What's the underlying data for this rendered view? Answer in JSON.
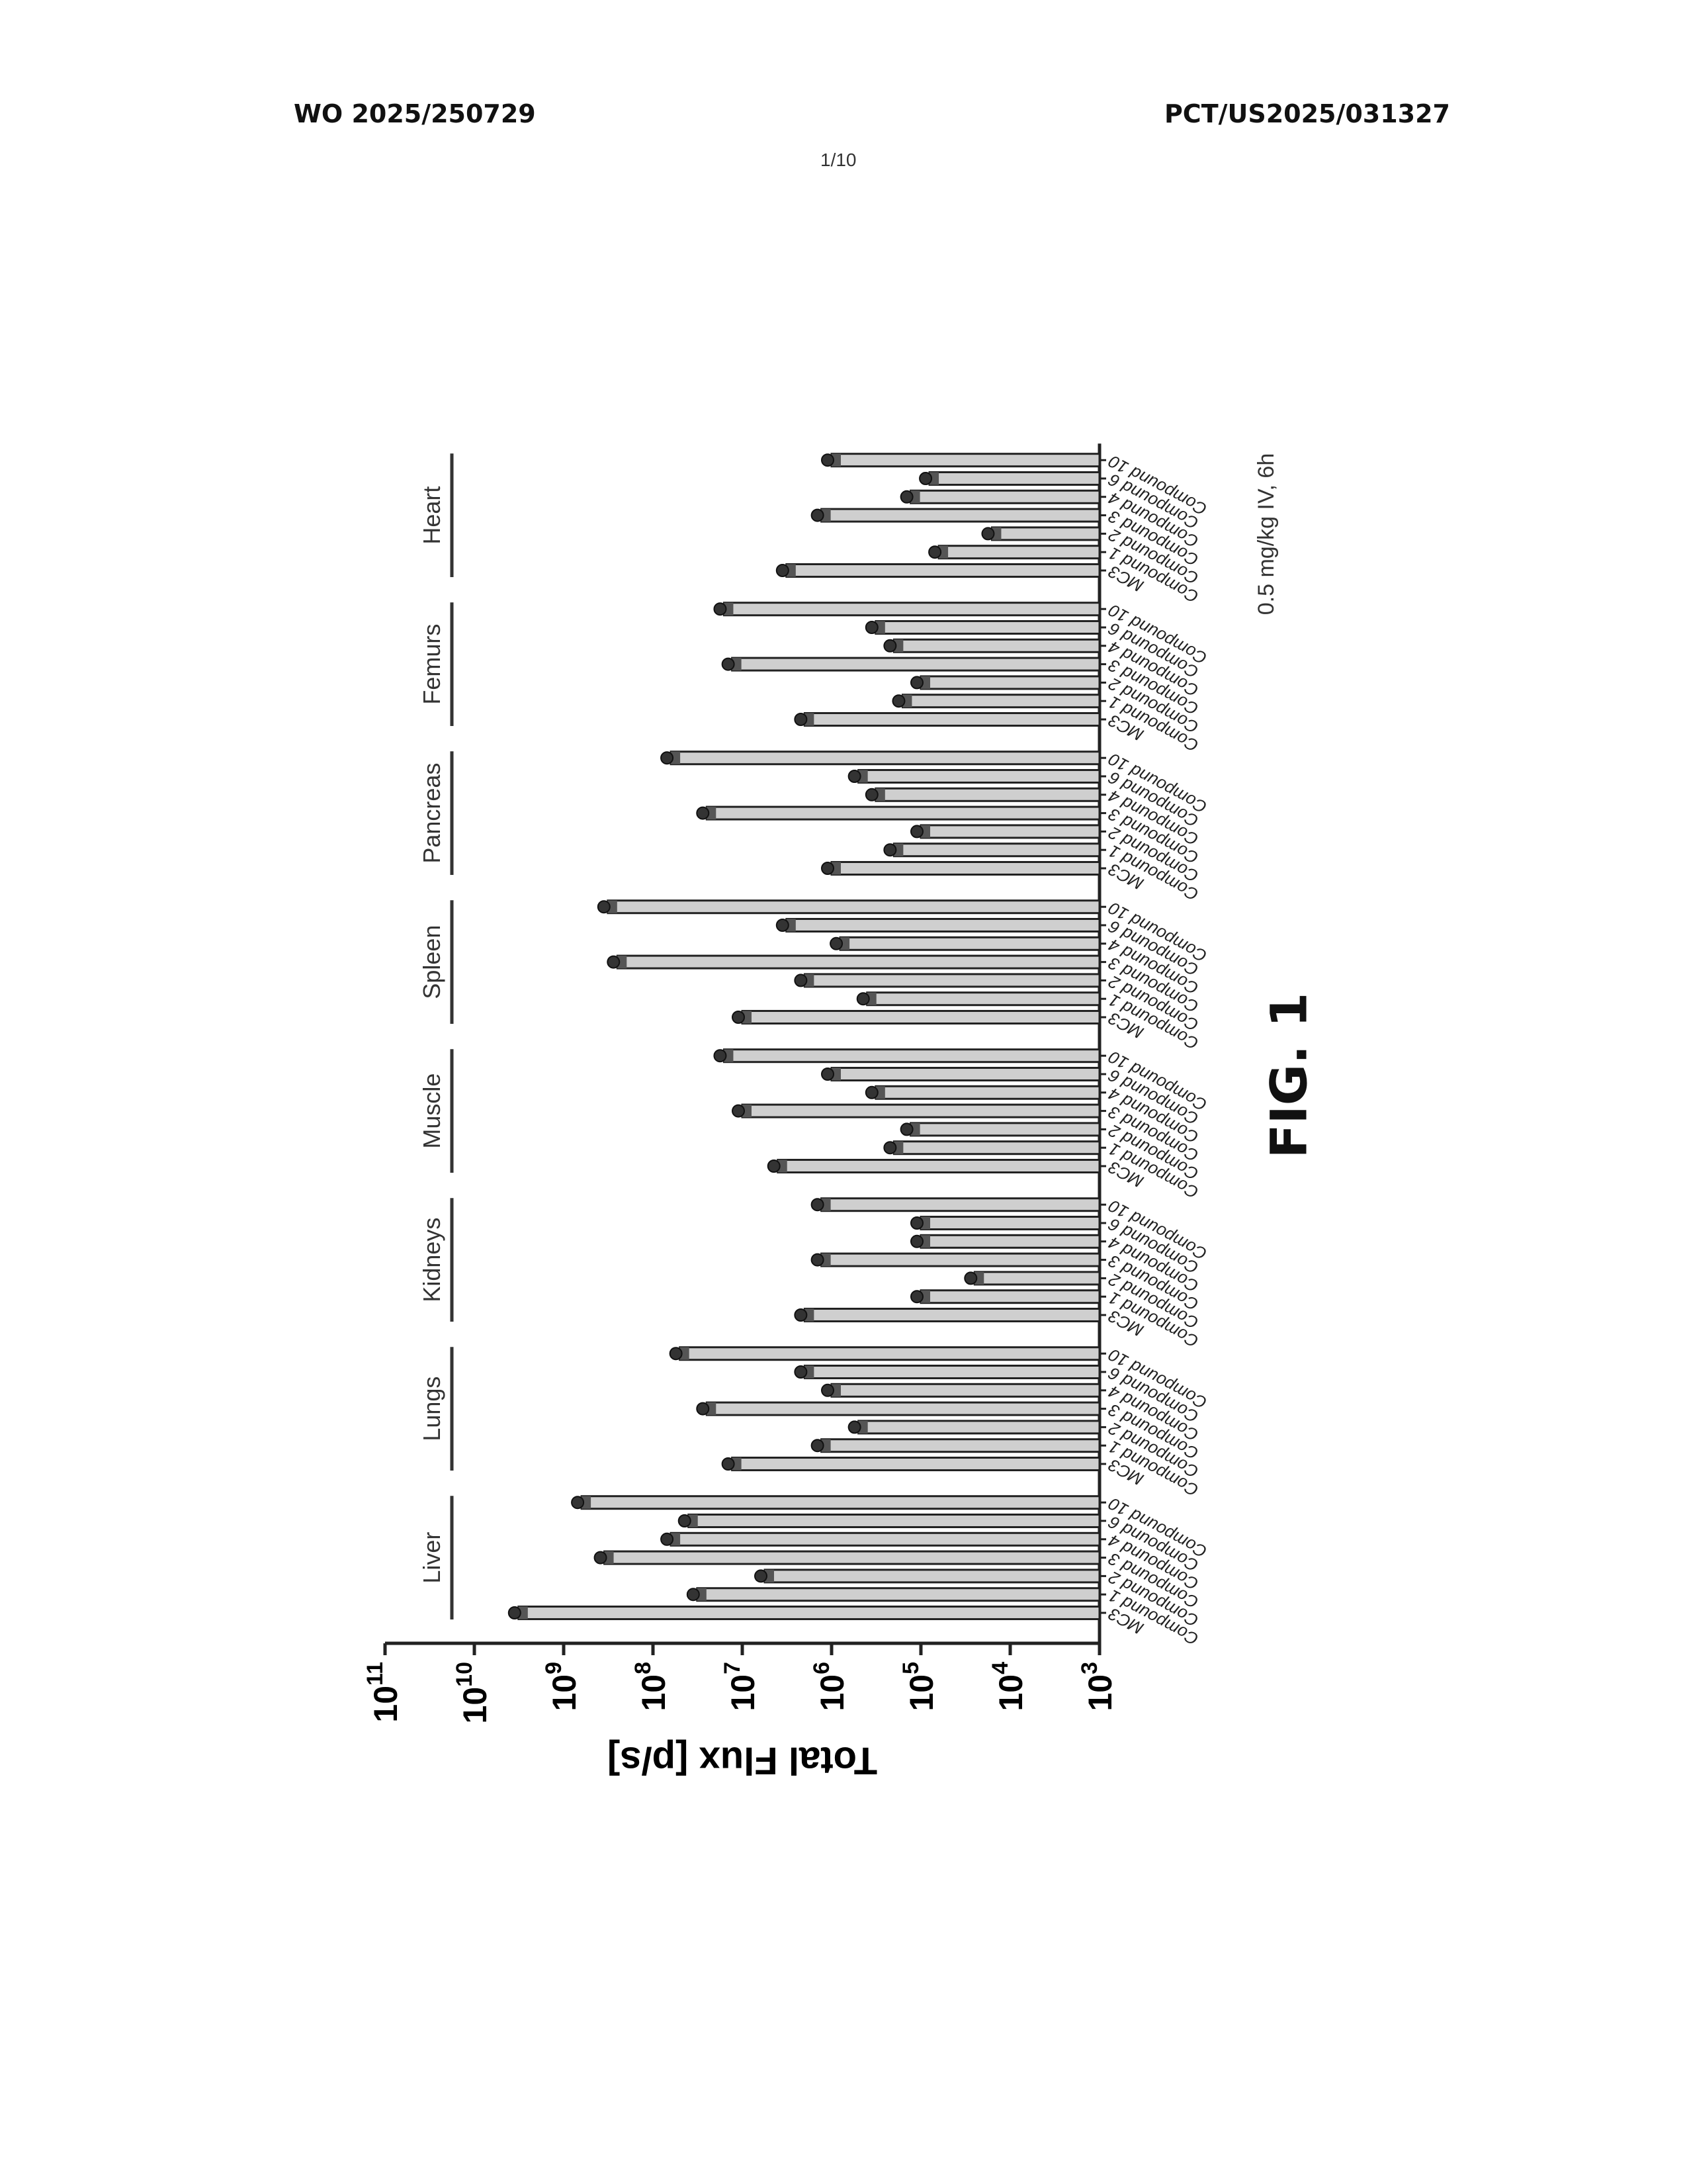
{
  "header": {
    "left": "WO 2025/250729",
    "right": "PCT/US2025/031327",
    "page": "1/10"
  },
  "figure_label": "FIG. 1",
  "chart_data": {
    "type": "bar",
    "orientation": "rotated 90° (bars extend leftward)",
    "ylabel": "Total Flux [p/s]",
    "yscale": "log",
    "ylim": [
      1000,
      100000000000
    ],
    "yticks": [
      3,
      4,
      5,
      6,
      7,
      8,
      9,
      10,
      11
    ],
    "annotation": "0.5 mg/kg IV, 6h",
    "categories": [
      "MC3",
      "Compound 1",
      "Compound 2",
      "Compound 3",
      "Compound 4",
      "Compound 6",
      "Compound 10"
    ],
    "groups": [
      {
        "name": "Liver",
        "values": [
          3200000000.0,
          32000000.0,
          5600000.0,
          350000000.0,
          63000000.0,
          40000000.0,
          630000000.0
        ]
      },
      {
        "name": "Lungs",
        "values": [
          13000000.0,
          1300000.0,
          500000.0,
          25000000.0,
          1000000.0,
          2000000.0,
          50000000.0
        ]
      },
      {
        "name": "Kidneys",
        "values": [
          2000000.0,
          100000.0,
          25000.0,
          1300000.0,
          100000.0,
          100000.0,
          1300000.0
        ]
      },
      {
        "name": "Muscle",
        "values": [
          4000000.0,
          200000.0,
          130000.0,
          10000000.0,
          320000.0,
          1000000.0,
          16000000.0
        ]
      },
      {
        "name": "Spleen",
        "values": [
          10000000.0,
          400000.0,
          2000000.0,
          250000000.0,
          800000.0,
          3200000.0,
          320000000.0
        ]
      },
      {
        "name": "Pancreas",
        "values": [
          1000000.0,
          200000.0,
          100000.0,
          25000000.0,
          320000.0,
          500000.0,
          63000000.0
        ]
      },
      {
        "name": "Femurs",
        "values": [
          2000000.0,
          160000.0,
          100000.0,
          13000000.0,
          200000.0,
          320000.0,
          16000000.0
        ]
      },
      {
        "name": "Heart",
        "values": [
          3200000.0,
          63000.0,
          16000.0,
          1300000.0,
          130000.0,
          80000.0,
          1000000.0
        ]
      }
    ],
    "colors": {
      "bar_fill": "#cfcfcf",
      "bar_edge": "#222222",
      "point": "#333333"
    },
    "grid": false
  }
}
